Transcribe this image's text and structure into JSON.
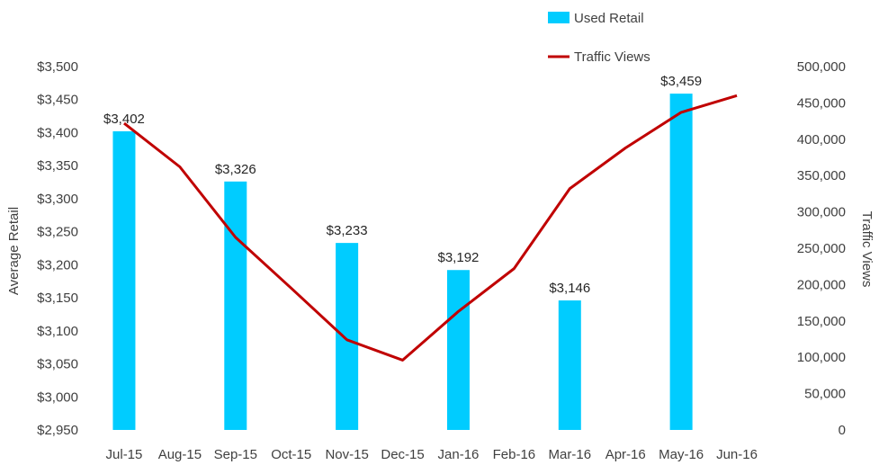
{
  "chart_data": {
    "type": "bar",
    "categories": [
      "Jul-15",
      "Aug-15",
      "Sep-15",
      "Oct-15",
      "Nov-15",
      "Dec-15",
      "Jan-16",
      "Feb-16",
      "Mar-16",
      "Apr-16",
      "May-16",
      "Jun-16"
    ],
    "series": [
      {
        "name": "Used Retail",
        "type": "bar",
        "axis": "left",
        "color": "#00CCFF",
        "values": [
          3402,
          null,
          3326,
          null,
          3233,
          null,
          3192,
          null,
          3146,
          null,
          3459,
          null
        ],
        "data_labels": [
          "$3,402",
          "",
          "$3,326",
          "",
          "$3,233",
          "",
          "$3,192",
          "",
          "$3,146",
          "",
          "$3,459",
          ""
        ]
      },
      {
        "name": "Traffic Views",
        "type": "line",
        "axis": "right",
        "color": "#C00000",
        "values": [
          422000,
          362000,
          265000,
          195000,
          124000,
          96000,
          163000,
          222000,
          332000,
          388000,
          437000,
          460000
        ]
      }
    ],
    "ylabel": "Average Retail",
    "ylabel_right": "Traffic Views",
    "ylim": [
      2950,
      3500
    ],
    "ylim_right": [
      0,
      500000
    ],
    "yticks_left": [
      "$2,950",
      "$3,000",
      "$3,050",
      "$3,100",
      "$3,150",
      "$3,200",
      "$3,250",
      "$3,300",
      "$3,350",
      "$3,400",
      "$3,450",
      "$3,500"
    ],
    "yticks_right": [
      "0",
      "50,000",
      "100,000",
      "150,000",
      "200,000",
      "250,000",
      "300,000",
      "350,000",
      "400,000",
      "450,000",
      "500,000"
    ],
    "grid": false,
    "legend": "top-center"
  }
}
